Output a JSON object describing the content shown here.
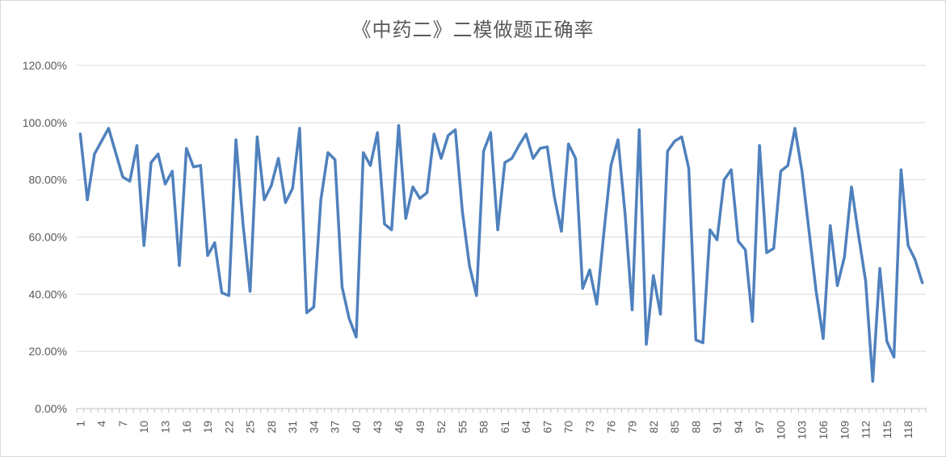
{
  "chart_data": {
    "type": "line",
    "title": "《中药二》二模做题正确率",
    "xlabel": "",
    "ylabel": "",
    "ylim": [
      0,
      1.2
    ],
    "ytick_values": [
      0,
      0.2,
      0.4,
      0.6,
      0.8,
      1.0,
      1.2
    ],
    "ytick_labels": [
      "0.00%",
      "20.00%",
      "40.00%",
      "60.00%",
      "80.00%",
      "100.00%",
      "120.00%"
    ],
    "grid": true,
    "legend": "none",
    "line_color": "#4f81bd",
    "x_tick_labels": [
      "1",
      "4",
      "7",
      "10",
      "13",
      "16",
      "19",
      "22",
      "25",
      "28",
      "31",
      "34",
      "37",
      "40",
      "43",
      "46",
      "49",
      "52",
      "55",
      "58",
      "61",
      "64",
      "67",
      "70",
      "73",
      "76",
      "79",
      "82",
      "85",
      "88",
      "91",
      "94",
      "97",
      "100",
      "103",
      "106",
      "109",
      "112",
      "115",
      "118"
    ],
    "x_tick_positions": [
      1,
      4,
      7,
      10,
      13,
      16,
      19,
      22,
      25,
      28,
      31,
      34,
      37,
      40,
      43,
      46,
      49,
      52,
      55,
      58,
      61,
      64,
      67,
      70,
      73,
      76,
      79,
      82,
      85,
      88,
      91,
      94,
      97,
      100,
      103,
      106,
      109,
      112,
      115,
      118
    ],
    "series": [
      {
        "values": [
          0.96,
          0.73,
          0.89,
          0.935,
          0.98,
          0.895,
          0.81,
          0.795,
          0.92,
          0.57,
          0.86,
          0.89,
          0.785,
          0.83,
          0.5,
          0.91,
          0.845,
          0.85,
          0.535,
          0.58,
          0.405,
          0.395,
          0.94,
          0.645,
          0.41,
          0.95,
          0.73,
          0.78,
          0.875,
          0.72,
          0.77,
          0.98,
          0.335,
          0.355,
          0.73,
          0.895,
          0.87,
          0.425,
          0.315,
          0.25,
          0.895,
          0.85,
          0.965,
          0.645,
          0.625,
          0.99,
          0.665,
          0.775,
          0.735,
          0.755,
          0.96,
          0.875,
          0.955,
          0.975,
          0.69,
          0.5,
          0.395,
          0.9,
          0.965,
          0.625,
          0.86,
          0.875,
          0.92,
          0.96,
          0.875,
          0.91,
          0.915,
          0.74,
          0.62,
          0.925,
          0.875,
          0.42,
          0.485,
          0.365,
          0.615,
          0.85,
          0.94,
          0.68,
          0.345,
          0.975,
          0.225,
          0.465,
          0.33,
          0.9,
          0.935,
          0.95,
          0.84,
          0.24,
          0.23,
          0.625,
          0.59,
          0.8,
          0.835,
          0.585,
          0.555,
          0.305,
          0.92,
          0.545,
          0.56,
          0.83,
          0.85,
          0.98,
          0.83,
          0.62,
          0.41,
          0.245,
          0.64,
          0.43,
          0.53,
          0.775,
          0.605,
          0.445,
          0.095,
          0.49,
          0.235,
          0.18,
          0.835,
          0.57,
          0.52,
          0.44
        ]
      }
    ]
  }
}
